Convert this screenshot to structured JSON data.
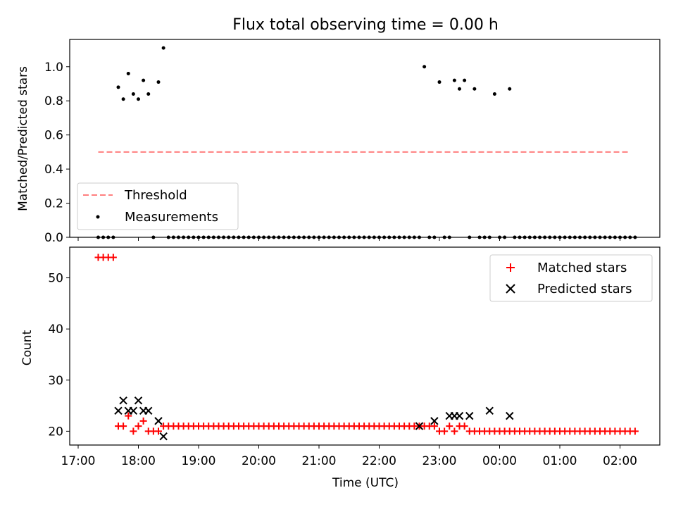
{
  "colors": {
    "threshold": "#ff7f7f",
    "measurements": "#000000",
    "matched": "#ff0000",
    "predicted": "#000000",
    "axes": "#000000"
  },
  "chart_data": {
    "title": "Flux total observing time = 0.00 h",
    "xlabel": "Time (UTC)",
    "x_ticks": [
      "17:00",
      "18:00",
      "19:00",
      "20:00",
      "21:00",
      "22:00",
      "23:00",
      "00:00",
      "01:00",
      "02:00"
    ],
    "top": {
      "type": "scatter",
      "ylabel": "Matched/Predicted stars",
      "ylim": [
        0,
        1.16
      ],
      "y_ticks": [
        "0.0",
        "0.2",
        "0.4",
        "0.6",
        "0.8",
        "1.0"
      ],
      "grid": false,
      "legend_position": "lower-left",
      "threshold": {
        "name": "Threshold",
        "value": 0.5,
        "x_range": [
          "17:20",
          "26:10"
        ],
        "style": "dashed"
      },
      "measurements": {
        "name": "Measurements",
        "x": [
          "17:20",
          "17:25",
          "17:30",
          "17:35",
          "17:40",
          "17:45",
          "17:50",
          "17:55",
          "18:00",
          "18:05",
          "18:10",
          "18:15",
          "18:20",
          "18:25",
          "18:30",
          "18:35",
          "18:40",
          "18:45",
          "18:50",
          "18:55",
          "19:00",
          "19:05",
          "19:10",
          "19:15",
          "19:20",
          "19:25",
          "19:30",
          "19:35",
          "19:40",
          "19:45",
          "19:50",
          "19:55",
          "20:00",
          "20:05",
          "20:10",
          "20:15",
          "20:20",
          "20:25",
          "20:30",
          "20:35",
          "20:40",
          "20:45",
          "20:50",
          "20:55",
          "21:00",
          "21:05",
          "21:10",
          "21:15",
          "21:20",
          "21:25",
          "21:30",
          "21:35",
          "21:40",
          "21:45",
          "21:50",
          "21:55",
          "22:00",
          "22:05",
          "22:10",
          "22:15",
          "22:20",
          "22:25",
          "22:30",
          "22:35",
          "22:40",
          "22:45",
          "22:50",
          "22:55",
          "23:00",
          "23:05",
          "23:10",
          "23:15",
          "23:20",
          "23:25",
          "23:30",
          "23:35",
          "23:40",
          "23:45",
          "23:50",
          "23:55",
          "24:00",
          "24:05",
          "24:10",
          "24:15",
          "24:20",
          "24:25",
          "24:30",
          "24:35",
          "24:40",
          "24:45",
          "24:50",
          "24:55",
          "25:00",
          "25:05",
          "25:10",
          "25:15",
          "25:20",
          "25:25",
          "25:30",
          "25:35",
          "25:40",
          "25:45",
          "25:50",
          "25:55",
          "26:00",
          "26:05",
          "26:10",
          "26:15"
        ],
        "y": [
          0,
          0,
          0,
          0,
          0.88,
          0.81,
          0.96,
          0.84,
          0.81,
          0.92,
          0.84,
          0,
          0.91,
          1.11,
          0,
          0,
          0,
          0,
          0,
          0,
          0,
          0,
          0,
          0,
          0,
          0,
          0,
          0,
          0,
          0,
          0,
          0,
          0,
          0,
          0,
          0,
          0,
          0,
          0,
          0,
          0,
          0,
          0,
          0,
          0,
          0,
          0,
          0,
          0,
          0,
          0,
          0,
          0,
          0,
          0,
          0,
          0,
          0,
          0,
          0,
          0,
          0,
          0,
          0,
          0,
          1.0,
          0,
          0,
          0.91,
          0,
          0,
          0.92,
          0.87,
          0.92,
          0,
          0.87,
          0,
          0,
          0,
          0.84,
          0,
          0,
          0.87,
          0,
          0,
          0,
          0,
          0,
          0,
          0,
          0,
          0,
          0,
          0,
          0,
          0,
          0,
          0,
          0,
          0,
          0,
          0,
          0,
          0,
          0,
          0,
          0,
          0
        ]
      }
    },
    "bottom": {
      "type": "scatter",
      "ylabel": "Count",
      "ylim": [
        17.3,
        56.0
      ],
      "y_ticks": [
        "20",
        "30",
        "40",
        "50"
      ],
      "grid": false,
      "legend_position": "upper-right",
      "series": [
        {
          "name": "Matched stars",
          "marker": "+",
          "x": [
            "17:20",
            "17:25",
            "17:30",
            "17:35",
            "17:40",
            "17:45",
            "17:50",
            "17:55",
            "18:00",
            "18:05",
            "18:10",
            "18:15",
            "18:20",
            "18:25",
            "18:30",
            "18:35",
            "18:40",
            "18:45",
            "18:50",
            "18:55",
            "19:00",
            "19:05",
            "19:10",
            "19:15",
            "19:20",
            "19:25",
            "19:30",
            "19:35",
            "19:40",
            "19:45",
            "19:50",
            "19:55",
            "20:00",
            "20:05",
            "20:10",
            "20:15",
            "20:20",
            "20:25",
            "20:30",
            "20:35",
            "20:40",
            "20:45",
            "20:50",
            "20:55",
            "21:00",
            "21:05",
            "21:10",
            "21:15",
            "21:20",
            "21:25",
            "21:30",
            "21:35",
            "21:40",
            "21:45",
            "21:50",
            "21:55",
            "22:00",
            "22:05",
            "22:10",
            "22:15",
            "22:20",
            "22:25",
            "22:30",
            "22:35",
            "22:40",
            "22:45",
            "22:50",
            "22:55",
            "23:00",
            "23:05",
            "23:10",
            "23:15",
            "23:20",
            "23:25",
            "23:30",
            "23:35",
            "23:40",
            "23:45",
            "23:50",
            "23:55",
            "24:00",
            "24:05",
            "24:10",
            "24:15",
            "24:20",
            "24:25",
            "24:30",
            "24:35",
            "24:40",
            "24:45",
            "24:50",
            "24:55",
            "25:00",
            "25:05",
            "25:10",
            "25:15",
            "25:20",
            "25:25",
            "25:30",
            "25:35",
            "25:40",
            "25:45",
            "25:50",
            "25:55",
            "26:00",
            "26:05",
            "26:10",
            "26:15"
          ],
          "y": [
            54,
            54,
            54,
            54,
            21,
            21,
            23,
            20,
            21,
            22,
            20,
            20,
            20,
            21,
            21,
            21,
            21,
            21,
            21,
            21,
            21,
            21,
            21,
            21,
            21,
            21,
            21,
            21,
            21,
            21,
            21,
            21,
            21,
            21,
            21,
            21,
            21,
            21,
            21,
            21,
            21,
            21,
            21,
            21,
            21,
            21,
            21,
            21,
            21,
            21,
            21,
            21,
            21,
            21,
            21,
            21,
            21,
            21,
            21,
            21,
            21,
            21,
            21,
            21,
            21,
            21,
            21,
            21,
            20,
            20,
            21,
            20,
            21,
            21,
            20,
            20,
            20,
            20,
            20,
            20,
            20,
            20,
            20,
            20,
            20,
            20,
            20,
            20,
            20,
            20,
            20,
            20,
            20,
            20,
            20,
            20,
            20,
            20,
            20,
            20,
            20,
            20,
            20,
            20,
            20,
            20,
            20,
            20
          ]
        },
        {
          "name": "Predicted stars",
          "marker": "x",
          "x": [
            "17:40",
            "17:45",
            "17:50",
            "17:55",
            "18:00",
            "18:05",
            "18:10",
            "18:20",
            "18:25",
            "22:40",
            "22:55",
            "23:10",
            "23:15",
            "23:20",
            "23:30",
            "23:50",
            "24:10"
          ],
          "y": [
            24,
            26,
            24,
            24,
            26,
            24,
            24,
            22,
            19,
            21,
            22,
            23,
            23,
            23,
            23,
            24,
            23
          ]
        }
      ]
    }
  }
}
